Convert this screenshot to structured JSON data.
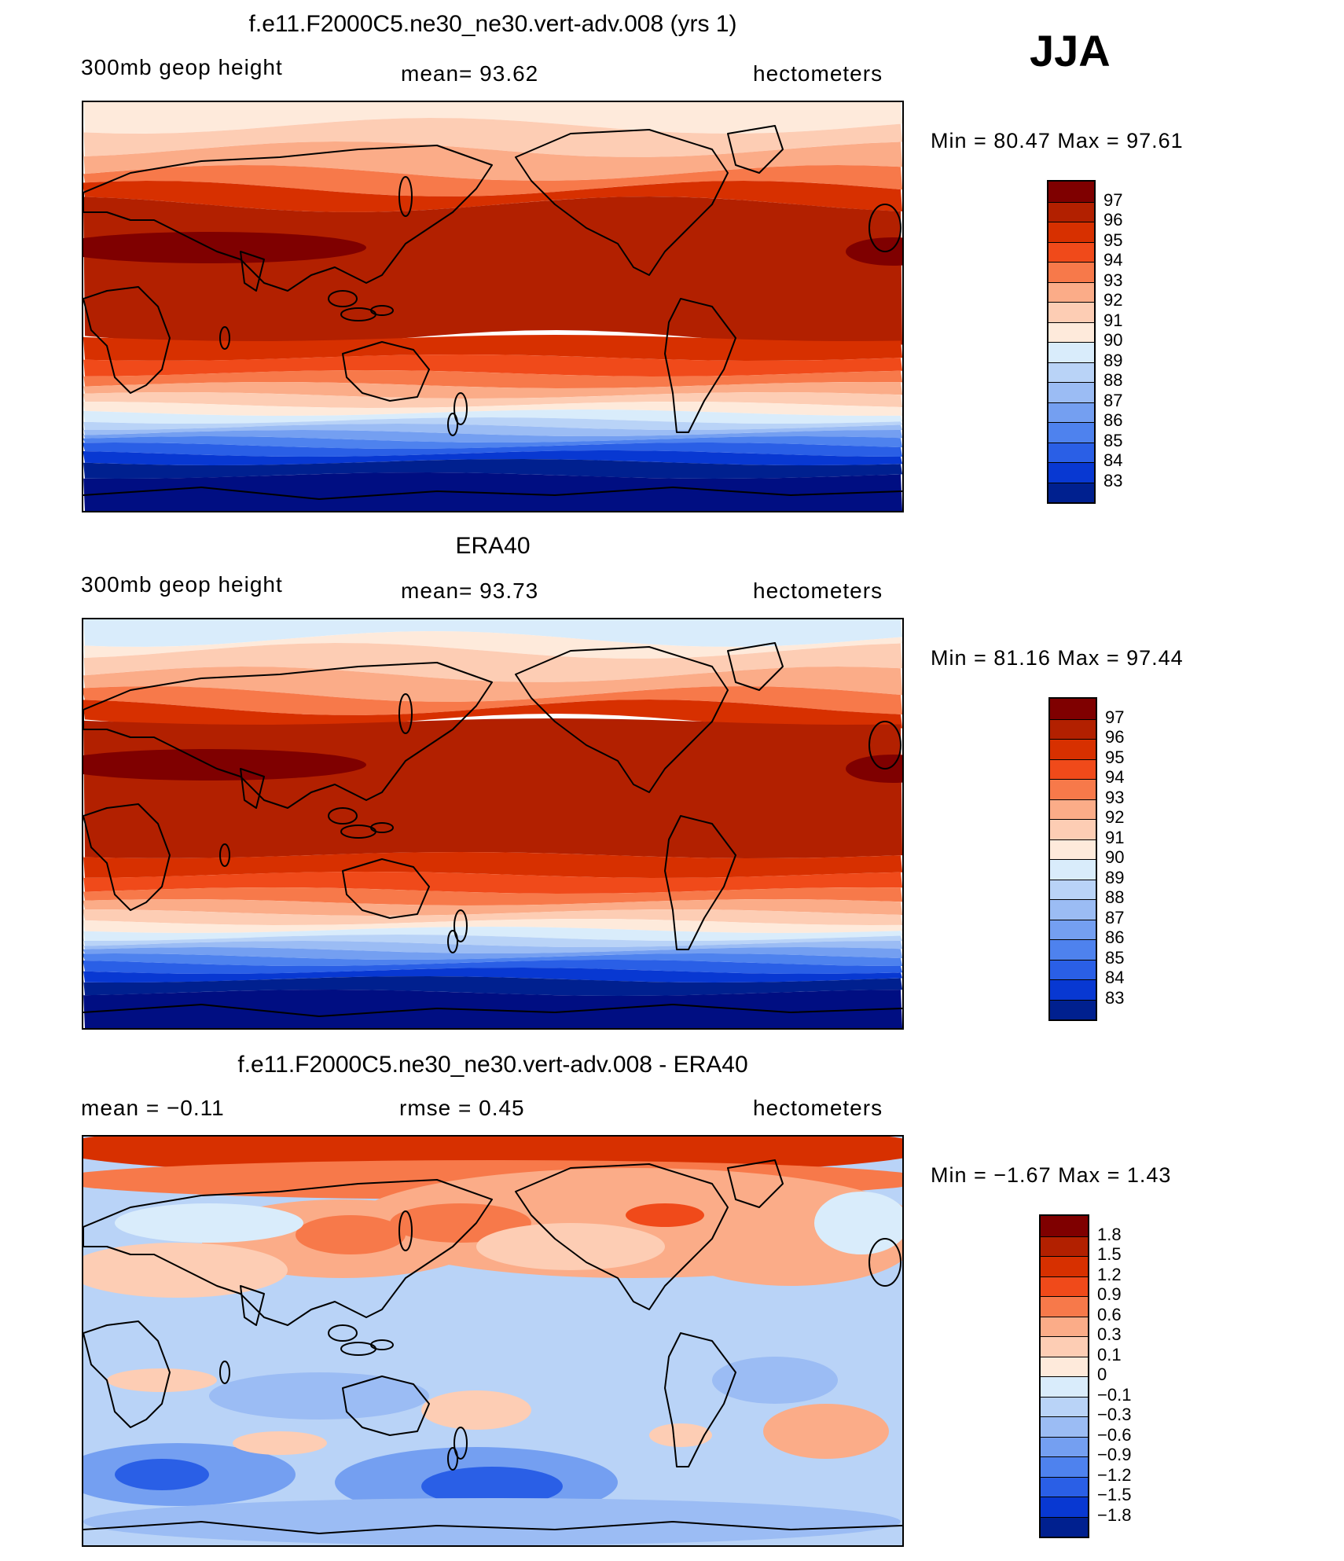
{
  "season": "JJA",
  "panels": [
    {
      "title": "f.e11.F2000C5.ne30_ne30.vert-adv.008 (yrs 1)",
      "left_label": "300mb geop height",
      "center_label": "mean=  93.62",
      "right_label": "hectometers",
      "minmax": "Min =   80.47 Max =   97.61",
      "kind": "abs",
      "cbar_labels": [
        "97",
        "96",
        "95",
        "94",
        "93",
        "92",
        "91",
        "90",
        "89",
        "88",
        "87",
        "86",
        "85",
        "84",
        "83"
      ]
    },
    {
      "title": "ERA40",
      "left_label": "300mb geop height",
      "center_label": "mean=  93.73",
      "right_label": "hectometers",
      "minmax": "Min =   81.16 Max =   97.44",
      "kind": "abs",
      "cbar_labels": [
        "97",
        "96",
        "95",
        "94",
        "93",
        "92",
        "91",
        "90",
        "89",
        "88",
        "87",
        "86",
        "85",
        "84",
        "83"
      ]
    },
    {
      "title": "f.e11.F2000C5.ne30_ne30.vert-adv.008 - ERA40",
      "left_label": "mean =   −0.11",
      "center_label": "rmse =    0.45",
      "right_label": "hectometers",
      "minmax": "Min =   −1.67 Max =    1.43",
      "kind": "diff",
      "cbar_labels": [
        "1.8",
        "1.5",
        "1.2",
        "0.9",
        "0.6",
        "0.3",
        "0.1",
        "0",
        "−0.1",
        "−0.3",
        "−0.6",
        "−0.9",
        "−1.2",
        "−1.5",
        "−1.8"
      ]
    }
  ],
  "colors": {
    "scale": [
      "#7f0000",
      "#b22000",
      "#d73000",
      "#f04a1a",
      "#f7794a",
      "#fbac88",
      "#fdcdb4",
      "#feeadb",
      "#d9ecfb",
      "#b9d3f7",
      "#9bbcf4",
      "#749ff1",
      "#4e82ee",
      "#2a5fe6",
      "#0838d2",
      "#00208f",
      "#000e82"
    ],
    "diff_base": "#b9d3f7"
  },
  "chart_data": [
    {
      "type": "heatmap",
      "title": "f.e11.F2000C5.ne30_ne30.vert-adv.008 (yrs 1)",
      "variable": "300mb geop height",
      "units": "hectometers",
      "mean": 93.62,
      "min": 80.47,
      "max": 97.61,
      "contour_levels": [
        83,
        84,
        85,
        86,
        87,
        88,
        89,
        90,
        91,
        92,
        93,
        94,
        95,
        96,
        97
      ],
      "zonal_profile_lat_value": [
        [
          80,
          90.5
        ],
        [
          70,
          91.5
        ],
        [
          60,
          92.5
        ],
        [
          50,
          94.5
        ],
        [
          40,
          96
        ],
        [
          30,
          96.8
        ],
        [
          20,
          96.3
        ],
        [
          10,
          96
        ],
        [
          0,
          95.8
        ],
        [
          -10,
          95.6
        ],
        [
          -20,
          95
        ],
        [
          -30,
          93
        ],
        [
          -40,
          90
        ],
        [
          -50,
          87
        ],
        [
          -60,
          84
        ],
        [
          -70,
          82
        ],
        [
          -80,
          81
        ]
      ]
    },
    {
      "type": "heatmap",
      "title": "ERA40",
      "variable": "300mb geop height",
      "units": "hectometers",
      "mean": 93.73,
      "min": 81.16,
      "max": 97.44,
      "contour_levels": [
        83,
        84,
        85,
        86,
        87,
        88,
        89,
        90,
        91,
        92,
        93,
        94,
        95,
        96,
        97
      ],
      "zonal_profile_lat_value": [
        [
          80,
          89.5
        ],
        [
          70,
          91
        ],
        [
          60,
          92.3
        ],
        [
          50,
          94.3
        ],
        [
          40,
          96
        ],
        [
          30,
          96.9
        ],
        [
          20,
          96.5
        ],
        [
          10,
          96
        ],
        [
          0,
          95.8
        ],
        [
          -10,
          95.6
        ],
        [
          -20,
          95
        ],
        [
          -30,
          93
        ],
        [
          -40,
          90
        ],
        [
          -50,
          87
        ],
        [
          -60,
          84
        ],
        [
          -70,
          82
        ],
        [
          -80,
          81.5
        ]
      ]
    },
    {
      "type": "heatmap",
      "title": "f.e11.F2000C5.ne30_ne30.vert-adv.008 - ERA40",
      "variable": "difference",
      "units": "hectometers",
      "mean": -0.11,
      "rmse": 0.45,
      "min": -1.67,
      "max": 1.43,
      "contour_levels": [
        -1.8,
        -1.5,
        -1.2,
        -0.9,
        -0.6,
        -0.3,
        -0.1,
        0,
        0.1,
        0.3,
        0.6,
        0.9,
        1.2,
        1.5,
        1.8
      ]
    }
  ]
}
